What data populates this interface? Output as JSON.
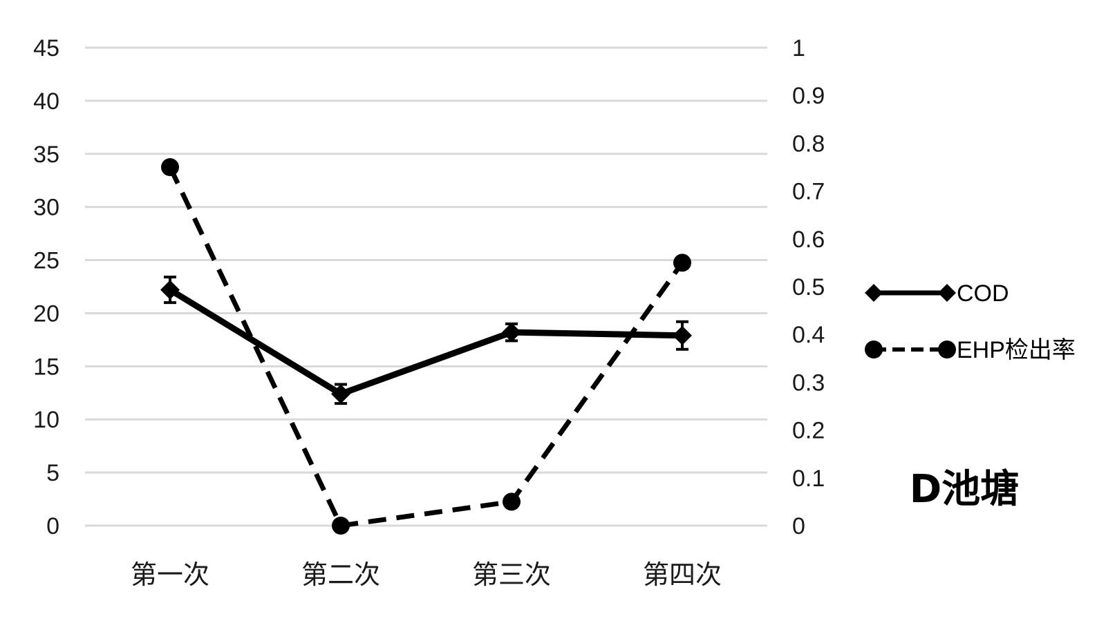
{
  "chart_data": {
    "type": "line",
    "title": "D池塘",
    "categories": [
      "第一次",
      "第二次",
      "第三次",
      "第四次"
    ],
    "y_left": {
      "ylim": [
        0,
        45
      ],
      "ticks": [
        "0",
        "5",
        "10",
        "15",
        "20",
        "25",
        "30",
        "35",
        "40",
        "45"
      ]
    },
    "y_right": {
      "ylim": [
        0,
        1
      ],
      "ticks": [
        "0",
        "0.1",
        "0.2",
        "0.3",
        "0.4",
        "0.5",
        "0.6",
        "0.7",
        "0.8",
        "0.9",
        "1"
      ]
    },
    "grid": true,
    "legend_position": "right",
    "series": [
      {
        "name": "COD",
        "axis": "left",
        "style": "solid",
        "marker": "diamond",
        "color": "#000000",
        "values": [
          22.2,
          12.4,
          18.2,
          17.9
        ],
        "error": [
          1.2,
          0.9,
          0.8,
          1.3
        ]
      },
      {
        "name": "EHP检出率",
        "axis": "right",
        "style": "dashed",
        "marker": "circle",
        "color": "#000000",
        "values": [
          0.75,
          0.0,
          0.05,
          0.55
        ]
      }
    ]
  }
}
